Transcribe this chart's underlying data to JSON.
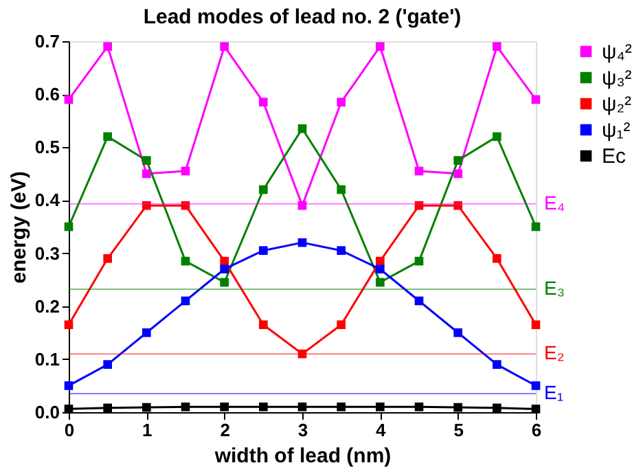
{
  "chart_data": {
    "type": "line",
    "title": "Lead modes of lead no. 2 ('gate')",
    "xlabel": "width of lead (nm)",
    "ylabel": "energy (eV)",
    "x": [
      0,
      0.5,
      1,
      1.5,
      2,
      2.5,
      3,
      3.5,
      4,
      4.5,
      5,
      5.5,
      6
    ],
    "series": [
      {
        "name": "ψ₄²",
        "color": "#ff00ff",
        "values": [
          0.59,
          0.69,
          0.45,
          0.455,
          0.69,
          0.585,
          0.39,
          0.585,
          0.69,
          0.455,
          0.45,
          0.69,
          0.59
        ]
      },
      {
        "name": "ψ₃²",
        "color": "#008000",
        "values": [
          0.35,
          0.52,
          0.475,
          0.285,
          0.245,
          0.42,
          0.535,
          0.42,
          0.245,
          0.285,
          0.475,
          0.52,
          0.35
        ]
      },
      {
        "name": "ψ₂²",
        "color": "#ff0000",
        "values": [
          0.165,
          0.29,
          0.39,
          0.39,
          0.285,
          0.165,
          0.11,
          0.165,
          0.285,
          0.39,
          0.39,
          0.29,
          0.165
        ]
      },
      {
        "name": "ψ₁²",
        "color": "#0000ff",
        "values": [
          0.05,
          0.09,
          0.15,
          0.21,
          0.27,
          0.305,
          0.32,
          0.305,
          0.27,
          0.21,
          0.15,
          0.09,
          0.05
        ]
      },
      {
        "name": "Ec",
        "color": "#000000",
        "values": [
          0.006,
          0.008,
          0.009,
          0.01,
          0.01,
          0.01,
          0.01,
          0.01,
          0.01,
          0.01,
          0.009,
          0.008,
          0.006
        ]
      }
    ],
    "ref_lines": [
      {
        "axis": "y",
        "value": 0.393,
        "label": "E₄",
        "color": "#ff00ff"
      },
      {
        "axis": "y",
        "value": 0.232,
        "label": "E₃",
        "color": "#008000"
      },
      {
        "axis": "y",
        "value": 0.11,
        "label": "E₂",
        "color": "#ff0000"
      },
      {
        "axis": "y",
        "value": 0.035,
        "label": "E₁",
        "color": "#0000ff"
      }
    ],
    "xlim": [
      0,
      6
    ],
    "xticks": [
      0,
      1,
      2,
      3,
      4,
      5,
      6
    ],
    "ylim": [
      0,
      0.7
    ],
    "yticks": [
      {
        "value": 0,
        "label": "0.0"
      },
      0.1,
      0.2,
      0.3,
      0.4,
      0.5,
      0.6,
      0.7
    ],
    "grid": false,
    "legend": "top right",
    "marker": "square",
    "line_style": "solid"
  }
}
